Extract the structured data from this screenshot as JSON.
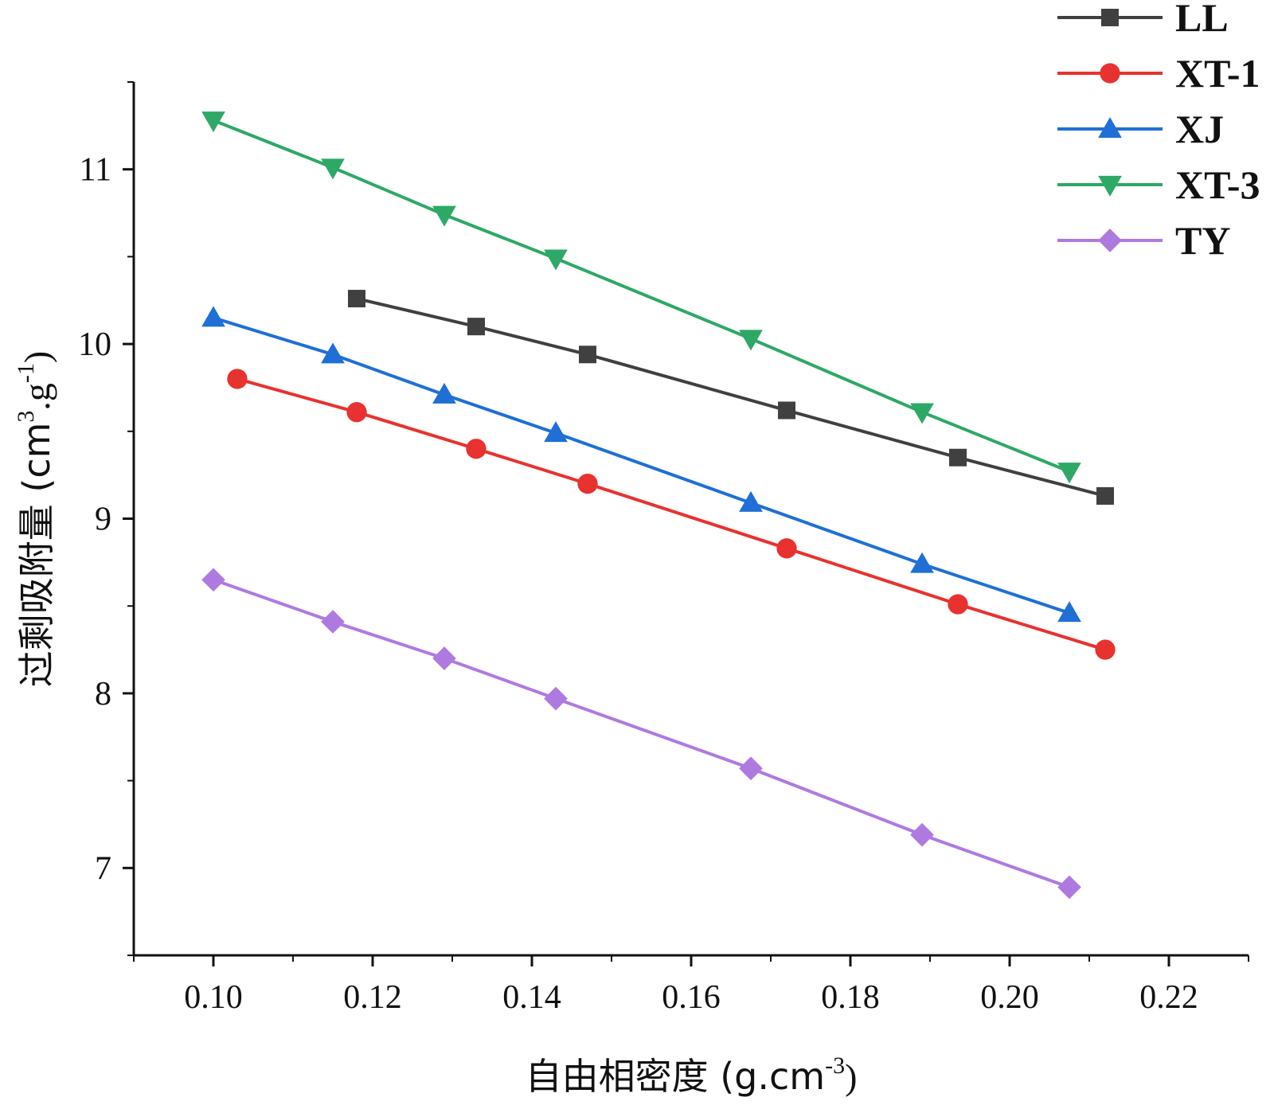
{
  "chart_data": {
    "type": "line",
    "title": "",
    "xlabel": "自由相密度 (g.cm",
    "xlabel_sup": "-3",
    "xlabel_suffix": ")",
    "ylabel": "过剩吸附量 (cm",
    "ylabel_sup1": "3",
    "ylabel_mid": ".g",
    "ylabel_sup2": "-1",
    "ylabel_suffix": ")",
    "xlim": [
      0.09,
      0.23
    ],
    "ylim": [
      6.5,
      11.5
    ],
    "x_ticks": [
      0.1,
      0.12,
      0.14,
      0.16,
      0.18,
      0.2,
      0.22
    ],
    "x_tick_labels": [
      "0.10",
      "0.12",
      "0.14",
      "0.16",
      "0.18",
      "0.20",
      "0.22"
    ],
    "y_ticks": [
      7,
      8,
      9,
      10,
      11
    ],
    "y_tick_labels": [
      "7",
      "8",
      "9",
      "10",
      "11"
    ],
    "legend_position": "top-right",
    "series": [
      {
        "name": "LL",
        "color": "#404040",
        "marker": "square",
        "x": [
          0.118,
          0.133,
          0.147,
          0.172,
          0.1935,
          0.212
        ],
        "y": [
          10.26,
          10.1,
          9.94,
          9.62,
          9.35,
          9.13
        ]
      },
      {
        "name": "XT-1",
        "color": "#e8322f",
        "marker": "circle",
        "x": [
          0.103,
          0.118,
          0.133,
          0.147,
          0.172,
          0.1935,
          0.212
        ],
        "y": [
          9.8,
          9.61,
          9.4,
          9.2,
          8.83,
          8.51,
          8.25
        ]
      },
      {
        "name": "XJ",
        "color": "#1f6fd6",
        "marker": "triangle-up",
        "x": [
          0.1,
          0.115,
          0.129,
          0.143,
          0.1675,
          0.189,
          0.2075
        ],
        "y": [
          10.15,
          9.94,
          9.71,
          9.49,
          9.09,
          8.74,
          8.46
        ]
      },
      {
        "name": "XT-3",
        "color": "#2ea866",
        "marker": "triangle-down",
        "x": [
          0.1,
          0.115,
          0.129,
          0.143,
          0.1675,
          0.189,
          0.2075
        ],
        "y": [
          11.28,
          11.01,
          10.74,
          10.49,
          10.03,
          9.61,
          9.27
        ]
      },
      {
        "name": "TY",
        "color": "#ae7ae0",
        "marker": "diamond",
        "x": [
          0.1,
          0.115,
          0.129,
          0.143,
          0.1675,
          0.189,
          0.2075
        ],
        "y": [
          8.65,
          8.41,
          8.2,
          7.97,
          7.57,
          7.19,
          6.89
        ]
      }
    ]
  }
}
